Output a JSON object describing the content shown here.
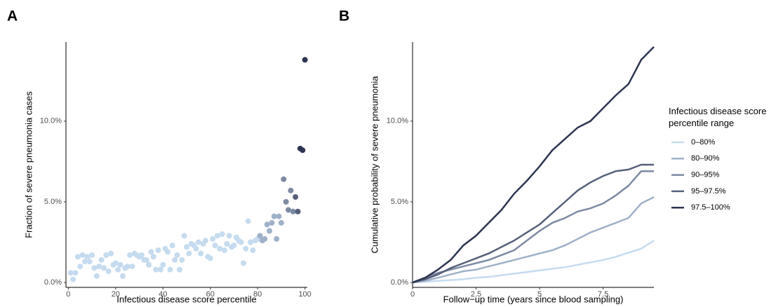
{
  "chart_data": [
    {
      "type": "scatter",
      "panel_label": "A",
      "x_label": "Infectious disease score percentile",
      "y_label": "Fraction of severe pneumonia cases",
      "xlim": [
        -1,
        101
      ],
      "ylim": [
        -0.3,
        14.9
      ],
      "xticks": [
        0,
        20,
        40,
        60,
        80,
        100
      ],
      "yticks": [
        {
          "value": 0,
          "label": "0.0%"
        },
        {
          "value": 5,
          "label": "5.0%"
        },
        {
          "value": 10,
          "label": "10.0%"
        }
      ],
      "series": [
        {
          "color": "#c6dbef",
          "x": [
            1,
            2,
            3,
            4,
            5,
            6,
            7,
            8,
            9,
            10,
            11,
            12,
            13,
            14,
            15,
            16,
            17,
            18,
            19,
            20,
            21,
            22,
            23,
            24,
            25,
            26,
            27,
            28,
            29,
            30,
            31,
            32,
            33,
            34,
            35,
            36,
            37,
            38,
            39,
            40,
            41,
            42,
            43,
            44,
            45,
            46,
            47,
            48,
            49,
            50,
            51,
            52,
            53,
            54,
            55,
            56,
            57,
            58,
            59,
            60,
            61,
            62,
            63,
            64,
            65,
            66,
            67,
            68,
            69,
            70,
            71,
            72,
            73,
            74,
            75,
            76,
            77,
            78,
            79,
            80
          ],
          "values": [
            0.6,
            0.2,
            0.6,
            1.6,
            1.0,
            1.7,
            1.3,
            1.6,
            1.3,
            1.7,
            0.9,
            0.4,
            1.0,
            1.4,
            0.9,
            1.7,
            0.7,
            1.8,
            1.1,
            1.2,
            0.8,
            1.1,
            0.4,
            0.9,
            1.0,
            1.7,
            1.0,
            1.8,
            1.7,
            1.6,
            1.7,
            1.4,
            1.4,
            1.1,
            1.9,
            1.6,
            0.8,
            2.0,
            0.8,
            1.1,
            2.1,
            1.9,
            0.8,
            2.3,
            1.4,
            1.7,
            0.8,
            1.4,
            2.9,
            2.2,
            1.8,
            2.4,
            2.3,
            2.1,
            2.5,
            1.8,
            2.4,
            2.6,
            1.6,
            1.5,
            2.7,
            2.3,
            2.9,
            2.1,
            3.0,
            2.0,
            2.4,
            2.9,
            2.2,
            2.3,
            2.8,
            2.6,
            2.5,
            1.2,
            2.1,
            3.8,
            2.5,
            2.0,
            2.6,
            2.7
          ]
        },
        {
          "color": "#9fb1c9",
          "x": [
            81,
            82,
            83,
            84,
            85,
            86,
            87,
            88,
            89,
            90
          ],
          "values": [
            2.9,
            2.6,
            2.7,
            3.6,
            3.2,
            3.7,
            4.1,
            2.7,
            4.1,
            3.7
          ]
        },
        {
          "color": "#7d8aa3",
          "x": [
            91,
            92,
            93,
            94,
            95
          ],
          "values": [
            6.4,
            5.0,
            4.5,
            5.7,
            4.4
          ]
        },
        {
          "color": "#56607a",
          "x": [
            96,
            97
          ],
          "values": [
            5.3,
            4.4
          ]
        },
        {
          "color": "#2d3550",
          "x": [
            98,
            99,
            100
          ],
          "values": [
            8.3,
            8.2,
            13.8
          ]
        }
      ]
    },
    {
      "type": "line",
      "panel_label": "B",
      "x_label": "Follow−up time (years since blood sampling)",
      "y_label": "Cumulative probability of severe pneumonia",
      "legend_title": "Infectious disease score percentile range",
      "xlim": [
        0,
        9.5
      ],
      "ylim": [
        -0.3,
        14.9
      ],
      "xticks": [
        0,
        2.5,
        5,
        7.5
      ],
      "yticks": [
        {
          "value": 0,
          "label": "0.0%"
        },
        {
          "value": 5,
          "label": "5.0%"
        },
        {
          "value": 10,
          "label": "10.0%"
        }
      ],
      "x": [
        0,
        0.5,
        1,
        1.5,
        2,
        2.5,
        3,
        3.5,
        4,
        4.5,
        5,
        5.5,
        6,
        6.5,
        7,
        7.5,
        8,
        8.5,
        9,
        9.5
      ],
      "series": [
        {
          "name": "0–80%",
          "color": "#c6dbef",
          "values": [
            0,
            0.05,
            0.1,
            0.15,
            0.2,
            0.3,
            0.35,
            0.45,
            0.55,
            0.65,
            0.75,
            0.85,
            0.95,
            1.1,
            1.25,
            1.4,
            1.6,
            1.85,
            2.1,
            2.6
          ]
        },
        {
          "name": "80–90%",
          "color": "#9fb1c9",
          "values": [
            0,
            0.1,
            0.3,
            0.5,
            0.7,
            0.8,
            1.0,
            1.2,
            1.4,
            1.6,
            1.8,
            2.0,
            2.3,
            2.7,
            3.1,
            3.4,
            3.7,
            4.0,
            4.9,
            5.3
          ]
        },
        {
          "name": "90–95%",
          "color": "#7d8aa3",
          "values": [
            0,
            0.3,
            0.6,
            0.8,
            1.0,
            1.2,
            1.4,
            1.7,
            2.0,
            2.6,
            3.2,
            3.7,
            4.0,
            4.4,
            4.6,
            4.9,
            5.4,
            6.0,
            6.9,
            6.9
          ]
        },
        {
          "name": "95–97.5%",
          "color": "#56607a",
          "values": [
            0,
            0.2,
            0.5,
            0.9,
            1.2,
            1.5,
            1.8,
            2.2,
            2.6,
            3.1,
            3.6,
            4.3,
            5.0,
            5.7,
            6.2,
            6.6,
            6.9,
            7.0,
            7.3,
            7.3
          ]
        },
        {
          "name": "97.5–100%",
          "color": "#2d3550",
          "values": [
            0,
            0.3,
            0.8,
            1.4,
            2.3,
            2.9,
            3.7,
            4.5,
            5.5,
            6.3,
            7.2,
            8.2,
            8.9,
            9.6,
            10.0,
            10.8,
            11.6,
            12.3,
            13.8,
            14.6
          ]
        }
      ]
    }
  ]
}
